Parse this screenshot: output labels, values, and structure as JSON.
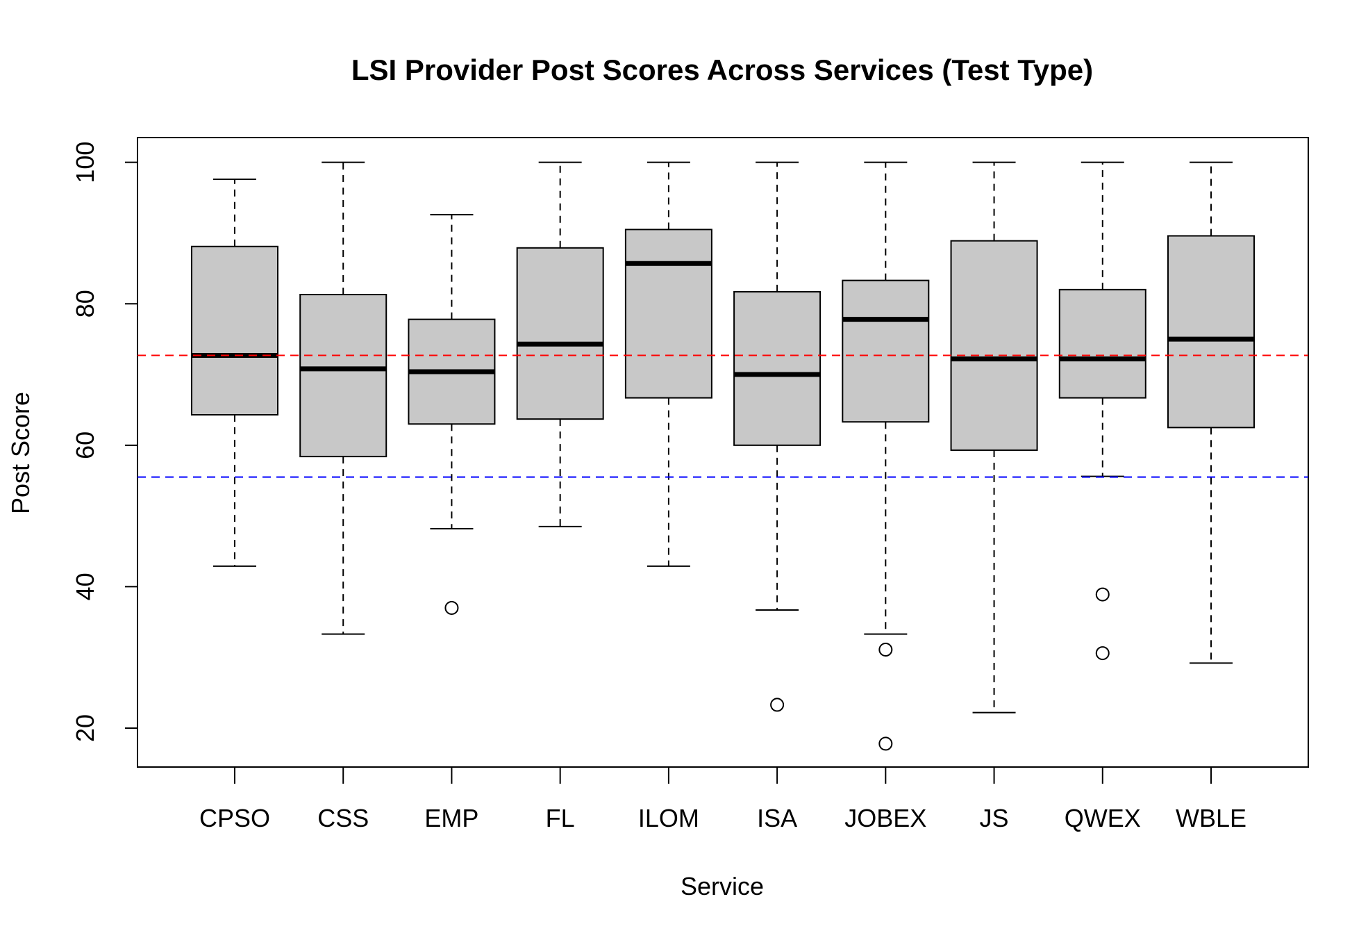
{
  "chart_data": {
    "type": "box",
    "title": "LSI Provider Post Scores Across Services (Test Type)",
    "xlabel": "Service",
    "ylabel": "Post Score",
    "ylim": [
      14.5,
      103.5
    ],
    "yticks": [
      20,
      40,
      60,
      80,
      100
    ],
    "grid": false,
    "box_fill": "#c8c8c8",
    "reference_lines": [
      {
        "value": 72.7,
        "color": "#ff0000",
        "style": "dashed"
      },
      {
        "value": 55.5,
        "color": "#0000ff",
        "style": "dashed"
      }
    ],
    "categories": [
      "CPSO",
      "CSS",
      "EMP",
      "FL",
      "ILOM",
      "ISA",
      "JOBEX",
      "JS",
      "QWEX",
      "WBLE"
    ],
    "boxes": [
      {
        "category": "CPSO",
        "whisker_low": 42.9,
        "q1": 64.3,
        "median": 72.7,
        "q3": 88.1,
        "whisker_high": 97.6,
        "outliers": []
      },
      {
        "category": "CSS",
        "whisker_low": 33.3,
        "q1": 58.4,
        "median": 70.8,
        "q3": 81.3,
        "whisker_high": 100,
        "outliers": []
      },
      {
        "category": "EMP",
        "whisker_low": 48.2,
        "q1": 63.0,
        "median": 70.4,
        "q3": 77.8,
        "whisker_high": 92.6,
        "outliers": [
          37.0
        ]
      },
      {
        "category": "FL",
        "whisker_low": 48.5,
        "q1": 63.7,
        "median": 74.3,
        "q3": 87.9,
        "whisker_high": 100,
        "outliers": []
      },
      {
        "category": "ILOM",
        "whisker_low": 42.9,
        "q1": 66.7,
        "median": 85.7,
        "q3": 90.5,
        "whisker_high": 100,
        "outliers": []
      },
      {
        "category": "ISA",
        "whisker_low": 36.7,
        "q1": 60.0,
        "median": 70.0,
        "q3": 81.7,
        "whisker_high": 100,
        "outliers": [
          23.3
        ]
      },
      {
        "category": "JOBEX",
        "whisker_low": 33.3,
        "q1": 63.3,
        "median": 77.8,
        "q3": 83.3,
        "whisker_high": 100,
        "outliers": [
          31.1,
          17.8
        ]
      },
      {
        "category": "JS",
        "whisker_low": 22.2,
        "q1": 59.3,
        "median": 72.2,
        "q3": 88.9,
        "whisker_high": 100,
        "outliers": []
      },
      {
        "category": "QWEX",
        "whisker_low": 55.6,
        "q1": 66.7,
        "median": 72.2,
        "q3": 82.0,
        "whisker_high": 100,
        "outliers": [
          38.9,
          30.6
        ]
      },
      {
        "category": "WBLE",
        "whisker_low": 29.2,
        "q1": 62.5,
        "median": 75.0,
        "q3": 89.6,
        "whisker_high": 100,
        "outliers": []
      }
    ]
  }
}
